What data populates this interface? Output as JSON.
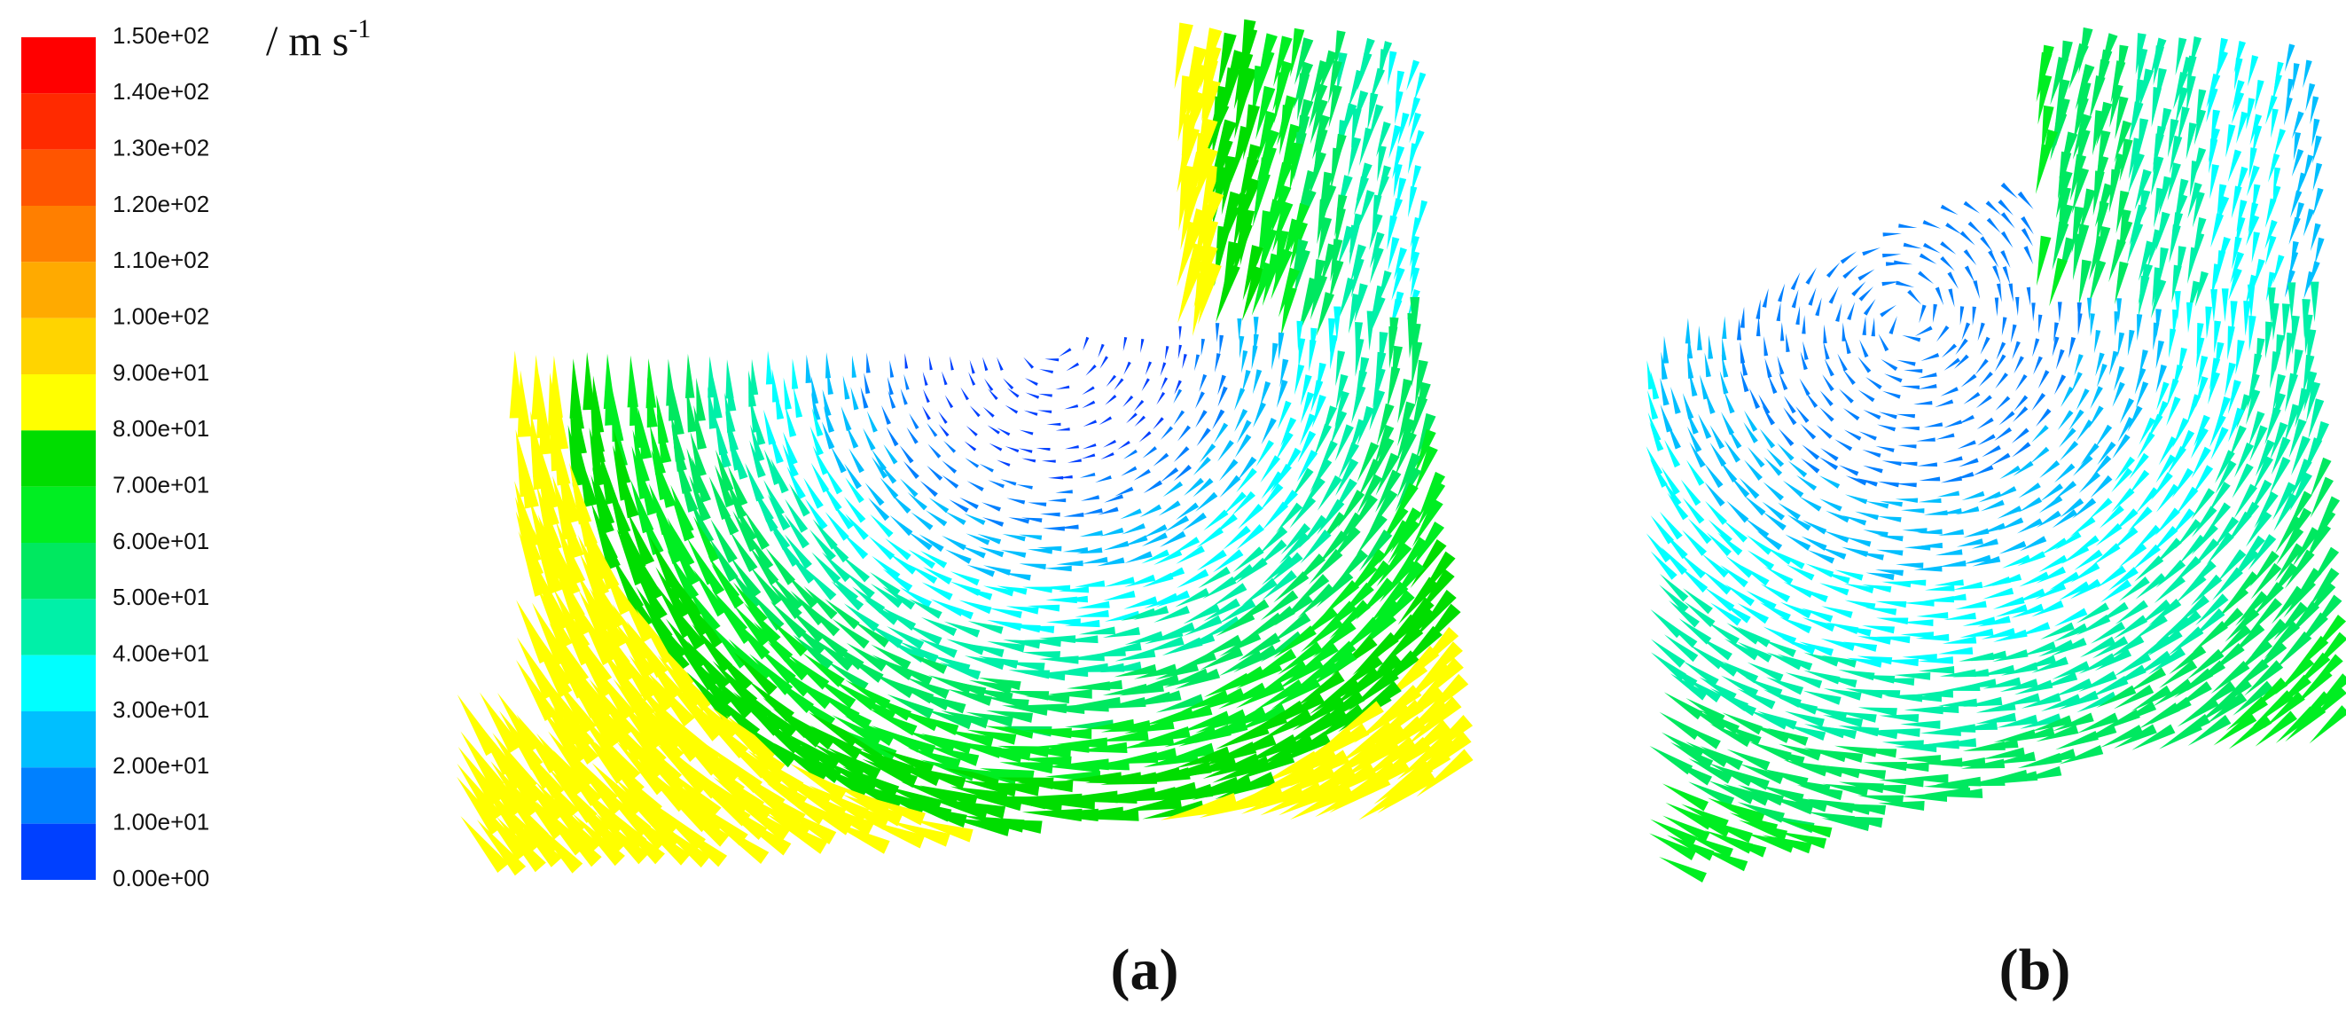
{
  "colorbar": {
    "ticks": [
      {
        "value": 150,
        "label": "1.50e+02"
      },
      {
        "value": 140,
        "label": "1.40e+02"
      },
      {
        "value": 130,
        "label": "1.30e+02"
      },
      {
        "value": 120,
        "label": "1.20e+02"
      },
      {
        "value": 110,
        "label": "1.10e+02"
      },
      {
        "value": 100,
        "label": "1.00e+02"
      },
      {
        "value": 90,
        "label": "9.00e+01"
      },
      {
        "value": 80,
        "label": "8.00e+01"
      },
      {
        "value": 70,
        "label": "7.00e+01"
      },
      {
        "value": 60,
        "label": "6.00e+01"
      },
      {
        "value": 50,
        "label": "5.00e+01"
      },
      {
        "value": 40,
        "label": "4.00e+01"
      },
      {
        "value": 30,
        "label": "3.00e+01"
      },
      {
        "value": 20,
        "label": "2.00e+01"
      },
      {
        "value": 10,
        "label": "1.00e+01"
      },
      {
        "value": 0,
        "label": "0.00e+00"
      }
    ],
    "colors": [
      "#ff0000",
      "#ff2a00",
      "#ff5500",
      "#ff7f00",
      "#ffaa00",
      "#ffd400",
      "#ffff00",
      "#00dd00",
      "#00ee22",
      "#00e860",
      "#00f0a8",
      "#00ffff",
      "#00bfff",
      "#0080ff",
      "#0040ff",
      "#0000ff"
    ],
    "unit": "/ m s",
    "unit_exponent": "-1"
  },
  "panels": [
    {
      "label": "(a)"
    },
    {
      "label": "(b)"
    }
  ]
}
